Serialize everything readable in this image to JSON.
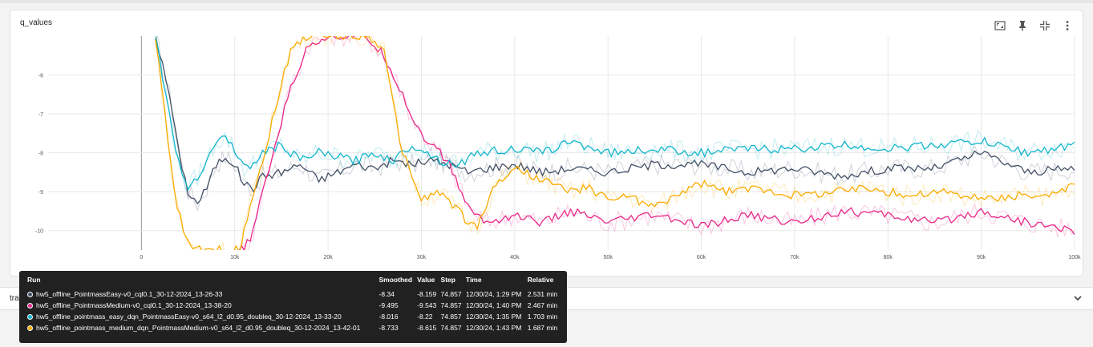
{
  "card": {
    "title": "q_values"
  },
  "toolbar": {
    "icons": [
      "fullscreen-icon",
      "pin-icon",
      "fit-domain-icon",
      "more-vert-icon"
    ]
  },
  "row2": {
    "label": "tra"
  },
  "tooltip": {
    "headers": {
      "run": "Run",
      "smoothed": "Smoothed",
      "value": "Value",
      "step": "Step",
      "time": "Time",
      "relative": "Relative"
    },
    "rows": [
      {
        "color": "#425066",
        "run": "hw5_offline_PointmassEasy-v0_cql0.1_30-12-2024_13-26-33",
        "smoothed": "-8.34",
        "value": "-8.159",
        "step": "74.857",
        "time": "12/30/24, 1:29 PM",
        "relative": "2.531 min"
      },
      {
        "color": "#e7298a",
        "run": "hw5_offline_PointmassMedium-v0_cql0.1_30-12-2024_13-38-20",
        "smoothed": "-9.495",
        "value": "-9.543",
        "step": "74.857",
        "time": "12/30/24, 1:40 PM",
        "relative": "2.467 min"
      },
      {
        "color": "#12b5cb",
        "run": "hw5_offline_pointmass_easy_dqn_PointmassEasy-v0_s64_l2_d0.95_doubleq_30-12-2024_13-33-20",
        "smoothed": "-8.016",
        "value": "-8.22",
        "step": "74.857",
        "time": "12/30/24, 1:35 PM",
        "relative": "1.703 min"
      },
      {
        "color": "#f9ab00",
        "run": "hw5_offline_pointmass_medium_dqn_PointmassMedium-v0_s64_l2_d0.95_doubleq_30-12-2024_13-42-01",
        "smoothed": "-8.733",
        "value": "-8.615",
        "step": "74.857",
        "time": "12/30/24, 1:43 PM",
        "relative": "1.687 min"
      }
    ]
  },
  "chart_data": {
    "type": "line",
    "title": "q_values",
    "xlim": [
      -10000,
      100000
    ],
    "ylim": [
      -10.5,
      -5
    ],
    "x_ticks": [
      0,
      10000,
      20000,
      30000,
      40000,
      50000,
      60000,
      70000,
      80000,
      90000,
      100000
    ],
    "x_tick_labels": [
      "0",
      "10k",
      "20k",
      "30k",
      "40k",
      "50k",
      "60k",
      "70k",
      "80k",
      "90k",
      "100k"
    ],
    "y_ticks": [
      -6,
      -7,
      -8,
      -9,
      -10
    ],
    "y_tick_labels": [
      "-6",
      "-7",
      "-8",
      "-9",
      "-10"
    ],
    "grid": true,
    "hover_step": 74857,
    "series": [
      {
        "name": "hw5_offline_PointmassEasy-v0_cql0.1_30-12-2024_13-26-33",
        "color": "#425066",
        "x": [
          1500,
          3000,
          4000,
          5000,
          6000,
          7000,
          8000,
          9000,
          10000,
          11000,
          12000,
          13000,
          15000,
          17000,
          19000,
          21000,
          23000,
          25000,
          27000,
          29000,
          31000,
          33000,
          35000,
          37000,
          40000,
          43000,
          46000,
          50000,
          55000,
          60000,
          65000,
          70000,
          75000,
          80000,
          85000,
          90000,
          95000,
          100000
        ],
        "y": [
          -5,
          -6.5,
          -8,
          -9,
          -9.3,
          -8.9,
          -8.3,
          -8.1,
          -8.3,
          -8.8,
          -8.9,
          -8.6,
          -8.5,
          -8.3,
          -8.7,
          -8.5,
          -8.3,
          -8.4,
          -8.2,
          -8.3,
          -8.2,
          -8.3,
          -8.5,
          -8.4,
          -8.3,
          -8.5,
          -8.4,
          -8.5,
          -8.3,
          -8.3,
          -8.5,
          -8.4,
          -8.6,
          -8.4,
          -8.4,
          -8.0,
          -8.5,
          -8.4
        ]
      },
      {
        "name": "hw5_offline_PointmassMedium-v0_cql0.1_30-12-2024_13-38-20",
        "color": "#e7298a",
        "x": [
          10500,
          11000,
          12000,
          13000,
          14000,
          15000,
          16000,
          18000,
          20000,
          22000,
          24000,
          26000,
          28000,
          29000,
          30000,
          31000,
          32000,
          33000,
          35000,
          37000,
          40000,
          43000,
          46000,
          50000,
          55000,
          60000,
          65000,
          70000,
          75000,
          80000,
          85000,
          90000,
          95000,
          100000
        ],
        "y": [
          -10.5,
          -10.5,
          -10,
          -9,
          -8.1,
          -7.2,
          -6.3,
          -5.2,
          -5,
          -5,
          -5,
          -5.5,
          -6.5,
          -7.1,
          -7.5,
          -7.8,
          -8.0,
          -8.3,
          -9.4,
          -9.8,
          -9.6,
          -9.8,
          -9.5,
          -9.8,
          -9.6,
          -9.9,
          -9.6,
          -9.8,
          -9.5,
          -9.6,
          -9.8,
          -9.5,
          -9.8,
          -10.0
        ]
      },
      {
        "name": "hw5_offline_pointmass_easy_dqn_PointmassEasy-v0_s64_l2_d0.95_doubleq_30-12-2024_13-33-20",
        "color": "#12b5cb",
        "x": [
          1500,
          3000,
          4000,
          5000,
          6000,
          7000,
          8000,
          9000,
          10000,
          11000,
          12000,
          13000,
          15000,
          17000,
          19000,
          21000,
          23000,
          25000,
          27000,
          29000,
          30000,
          32000,
          34000,
          36000,
          40000,
          43000,
          46000,
          50000,
          55000,
          60000,
          65000,
          70000,
          75000,
          80000,
          85000,
          90000,
          95000,
          100000
        ],
        "y": [
          -5,
          -7,
          -8.3,
          -8.9,
          -8.6,
          -8.2,
          -7.7,
          -7.6,
          -7.9,
          -8.4,
          -8.3,
          -8.0,
          -7.8,
          -8.2,
          -8.0,
          -8.1,
          -8.2,
          -8.0,
          -8.2,
          -7.8,
          -7.9,
          -8.2,
          -8.3,
          -8.0,
          -7.9,
          -8.0,
          -7.7,
          -8.0,
          -7.9,
          -8.0,
          -7.9,
          -7.9,
          -7.8,
          -7.9,
          -7.8,
          -7.7,
          -8.0,
          -7.8
        ]
      },
      {
        "name": "hw5_offline_pointmass_medium_dqn_PointmassMedium-v0_s64_l2_d0.95_doubleq_30-12-2024_13-42-01",
        "color": "#f9ab00",
        "x": [
          1500,
          2500,
          3500,
          4500,
          5500,
          10500,
          11000,
          12000,
          13000,
          14000,
          15000,
          16000,
          17000,
          18000,
          19000,
          20000,
          22000,
          24000,
          25000,
          26000,
          27000,
          28000,
          29000,
          30000,
          32000,
          34000,
          35000,
          36000,
          37000,
          38000,
          39000,
          40000,
          42000,
          44000,
          46000,
          48000,
          50000,
          52000,
          55000,
          58000,
          60000,
          63000,
          66000,
          70000,
          74000,
          78000,
          82000,
          86000,
          90000,
          94000,
          98000,
          100000
        ],
        "y": [
          -5,
          -7,
          -9,
          -10,
          -10.5,
          -10.5,
          -10,
          -9,
          -8.2,
          -7.2,
          -6.2,
          -5.4,
          -5.1,
          -5,
          -5,
          -5,
          -5,
          -5,
          -5.1,
          -5.4,
          -6.8,
          -8.0,
          -8.6,
          -9.2,
          -9.0,
          -9.5,
          -9.8,
          -9.9,
          -9.3,
          -8.8,
          -8.6,
          -8.4,
          -8.6,
          -8.8,
          -9.0,
          -8.9,
          -9.2,
          -9.1,
          -9.4,
          -9.0,
          -8.8,
          -9.0,
          -8.9,
          -9.1,
          -9.0,
          -8.9,
          -9.1,
          -9.0,
          -9.2,
          -9.1,
          -9.1,
          -8.8
        ]
      }
    ]
  }
}
